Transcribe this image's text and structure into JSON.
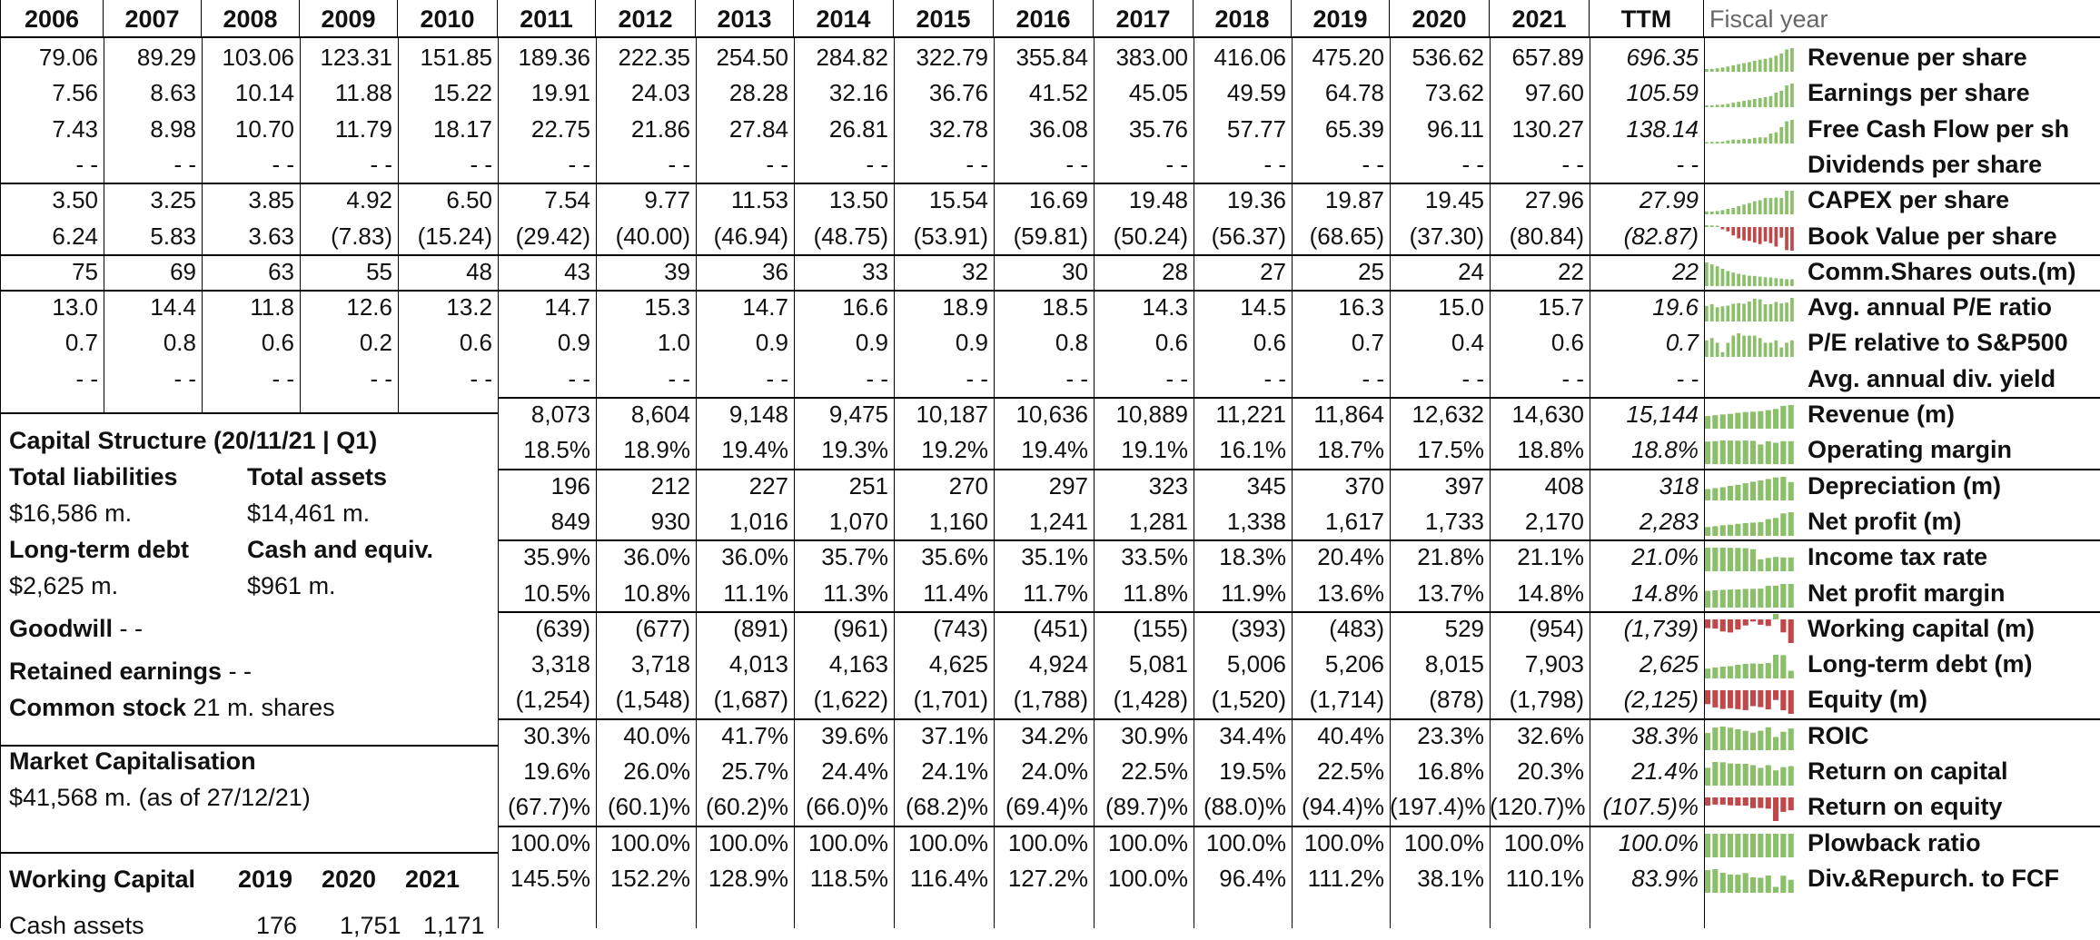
{
  "header": {
    "years": [
      "2006",
      "2007",
      "2008",
      "2009",
      "2010",
      "2011",
      "2012",
      "2013",
      "2014",
      "2015",
      "2016",
      "2017",
      "2018",
      "2019",
      "2020",
      "2021",
      "TTM"
    ],
    "fiscal_year_label": "Fiscal year"
  },
  "rows": [
    {
      "label": "Revenue per share",
      "values": [
        "79.06",
        "89.29",
        "103.06",
        "123.31",
        "151.85",
        "189.36",
        "222.35",
        "254.50",
        "284.82",
        "322.79",
        "355.84",
        "383.00",
        "416.06",
        "475.20",
        "536.62",
        "657.89",
        "696.35"
      ],
      "spark": "up"
    },
    {
      "label": "Earnings per share",
      "values": [
        "7.56",
        "8.63",
        "10.14",
        "11.88",
        "15.22",
        "19.91",
        "24.03",
        "28.28",
        "32.16",
        "36.76",
        "41.52",
        "45.05",
        "49.59",
        "64.78",
        "73.62",
        "97.60",
        "105.59"
      ],
      "spark": "up"
    },
    {
      "label": "Free Cash Flow per sh",
      "values": [
        "7.43",
        "8.98",
        "10.70",
        "11.79",
        "18.17",
        "22.75",
        "21.86",
        "27.84",
        "26.81",
        "32.78",
        "36.08",
        "35.76",
        "57.77",
        "65.39",
        "96.11",
        "130.27",
        "138.14"
      ],
      "spark": "up"
    },
    {
      "label": "Dividends per share",
      "values": [
        "- -",
        "- -",
        "- -",
        "- -",
        "- -",
        "- -",
        "- -",
        "- -",
        "- -",
        "- -",
        "- -",
        "- -",
        "- -",
        "- -",
        "- -",
        "- -",
        "- -"
      ],
      "spark": "none"
    },
    {
      "label": "CAPEX per share",
      "values": [
        "3.50",
        "3.25",
        "3.85",
        "4.92",
        "6.50",
        "7.54",
        "9.77",
        "11.53",
        "13.50",
        "15.54",
        "16.69",
        "19.48",
        "19.36",
        "19.87",
        "19.45",
        "27.96",
        "27.99"
      ],
      "spark": "up"
    },
    {
      "label": "Book Value per share",
      "values": [
        "6.24",
        "5.83",
        "3.63",
        "(7.83)",
        "(15.24)",
        "(29.42)",
        "(40.00)",
        "(46.94)",
        "(48.75)",
        "(53.91)",
        "(59.81)",
        "(50.24)",
        "(56.37)",
        "(68.65)",
        "(37.30)",
        "(80.84)",
        "(82.87)"
      ],
      "spark": "neg"
    },
    {
      "label": "Comm.Shares outs.(m)",
      "values": [
        "75",
        "69",
        "63",
        "55",
        "48",
        "43",
        "39",
        "36",
        "33",
        "32",
        "30",
        "28",
        "27",
        "25",
        "24",
        "22",
        "22"
      ],
      "spark": "down"
    },
    {
      "label": "Avg. annual P/E ratio",
      "values": [
        "13.0",
        "14.4",
        "11.8",
        "12.6",
        "13.2",
        "14.7",
        "15.3",
        "14.7",
        "16.6",
        "18.9",
        "18.5",
        "14.3",
        "14.5",
        "16.3",
        "15.0",
        "15.7",
        "19.6"
      ],
      "spark": "flat"
    },
    {
      "label": "P/E relative to S&P500",
      "values": [
        "0.7",
        "0.8",
        "0.6",
        "0.2",
        "0.6",
        "0.9",
        "1.0",
        "0.9",
        "0.9",
        "0.9",
        "0.8",
        "0.6",
        "0.6",
        "0.7",
        "0.4",
        "0.6",
        "0.7"
      ],
      "spark": "mixed"
    },
    {
      "label": "Avg. annual div. yield",
      "values": [
        "- -",
        "- -",
        "- -",
        "- -",
        "- -",
        "- -",
        "- -",
        "- -",
        "- -",
        "- -",
        "- -",
        "- -",
        "- -",
        "- -",
        "- -",
        "- -",
        "- -"
      ],
      "spark": "none"
    },
    {
      "label": "Revenue (m)",
      "values": [
        "",
        "",
        "",
        "",
        "",
        "8,073",
        "8,604",
        "9,148",
        "9,475",
        "10,187",
        "10,636",
        "10,889",
        "11,221",
        "11,864",
        "12,632",
        "14,630",
        "15,144"
      ],
      "spark": "up"
    },
    {
      "label": "Operating margin",
      "values": [
        "",
        "",
        "",
        "",
        "",
        "18.5%",
        "18.9%",
        "19.4%",
        "19.3%",
        "19.2%",
        "19.4%",
        "19.1%",
        "16.1%",
        "18.7%",
        "17.5%",
        "18.8%",
        "18.8%"
      ],
      "spark": "flat"
    },
    {
      "label": "Depreciation (m)",
      "values": [
        "",
        "",
        "",
        "",
        "",
        "196",
        "212",
        "227",
        "251",
        "270",
        "297",
        "323",
        "345",
        "370",
        "397",
        "408",
        "318"
      ],
      "spark": "up"
    },
    {
      "label": "Net profit (m)",
      "values": [
        "",
        "",
        "",
        "",
        "",
        "849",
        "930",
        "1,016",
        "1,070",
        "1,160",
        "1,241",
        "1,281",
        "1,338",
        "1,617",
        "1,733",
        "2,170",
        "2,283"
      ],
      "spark": "up"
    },
    {
      "label": "Income tax rate",
      "values": [
        "",
        "",
        "",
        "",
        "",
        "35.9%",
        "36.0%",
        "36.0%",
        "35.7%",
        "35.6%",
        "35.1%",
        "33.5%",
        "18.3%",
        "20.4%",
        "21.8%",
        "21.1%",
        "21.0%"
      ],
      "spark": "down"
    },
    {
      "label": "Net profit margin",
      "values": [
        "",
        "",
        "",
        "",
        "",
        "10.5%",
        "10.8%",
        "11.1%",
        "11.3%",
        "11.4%",
        "11.7%",
        "11.8%",
        "11.9%",
        "13.6%",
        "13.7%",
        "14.8%",
        "14.8%"
      ],
      "spark": "up"
    },
    {
      "label": "Working capital (m)",
      "values": [
        "",
        "",
        "",
        "",
        "",
        "(639)",
        "(677)",
        "(891)",
        "(961)",
        "(743)",
        "(451)",
        "(155)",
        "(393)",
        "(483)",
        "529",
        "(954)",
        "(1,739)"
      ],
      "spark": "neg"
    },
    {
      "label": "Long-term debt (m)",
      "values": [
        "",
        "",
        "",
        "",
        "",
        "3,318",
        "3,718",
        "4,013",
        "4,163",
        "4,625",
        "4,924",
        "5,081",
        "5,006",
        "5,206",
        "8,015",
        "7,903",
        "2,625"
      ],
      "spark": "up"
    },
    {
      "label": "Equity (m)",
      "values": [
        "",
        "",
        "",
        "",
        "",
        "(1,254)",
        "(1,548)",
        "(1,687)",
        "(1,622)",
        "(1,701)",
        "(1,788)",
        "(1,428)",
        "(1,520)",
        "(1,714)",
        "(878)",
        "(1,798)",
        "(2,125)"
      ],
      "spark": "neg"
    },
    {
      "label": "ROIC",
      "values": [
        "",
        "",
        "",
        "",
        "",
        "30.3%",
        "40.0%",
        "41.7%",
        "39.6%",
        "37.1%",
        "34.2%",
        "30.9%",
        "34.4%",
        "40.4%",
        "23.3%",
        "32.6%",
        "38.3%"
      ],
      "spark": "flat"
    },
    {
      "label": "Return on capital",
      "values": [
        "",
        "",
        "",
        "",
        "",
        "19.6%",
        "26.0%",
        "25.7%",
        "24.4%",
        "24.1%",
        "24.0%",
        "22.5%",
        "19.5%",
        "22.5%",
        "16.8%",
        "20.3%",
        "21.4%"
      ],
      "spark": "flat"
    },
    {
      "label": "Return on equity",
      "values": [
        "",
        "",
        "",
        "",
        "",
        "(67.7)%",
        "(60.1)%",
        "(60.2)%",
        "(66.0)%",
        "(68.2)%",
        "(69.4)%",
        "(89.7)%",
        "(88.0)%",
        "(94.4)%",
        "(197.4)%",
        "(120.7)%",
        "(107.5)%"
      ],
      "spark": "negsmall"
    },
    {
      "label": "Plowback ratio",
      "values": [
        "",
        "",
        "",
        "",
        "",
        "100.0%",
        "100.0%",
        "100.0%",
        "100.0%",
        "100.0%",
        "100.0%",
        "100.0%",
        "100.0%",
        "100.0%",
        "100.0%",
        "100.0%",
        "100.0%"
      ],
      "spark": "flat"
    },
    {
      "label": "Div.&Repurch. to FCF",
      "values": [
        "",
        "",
        "",
        "",
        "",
        "145.5%",
        "152.2%",
        "128.9%",
        "118.5%",
        "116.4%",
        "127.2%",
        "100.0%",
        "96.4%",
        "111.2%",
        "38.1%",
        "110.1%",
        "83.9%"
      ],
      "spark": "flat"
    }
  ],
  "left_panel": {
    "cap_title": "Capital Structure (20/11/21 | Q1)",
    "total_liabilities_label": "Total liabilities",
    "total_liabilities_value": "$16,586 m.",
    "total_assets_label": "Total assets",
    "total_assets_value": "$14,461 m.",
    "lt_debt_label": "Long-term debt",
    "lt_debt_value": "$2,625 m.",
    "cash_label": "Cash and equiv.",
    "cash_value": "$961 m.",
    "goodwill_label": "Goodwill",
    "goodwill_value": "- -",
    "retained_label": "Retained earnings",
    "retained_value": "- -",
    "common_label": "Common stock",
    "common_value": "21 m. shares",
    "mcap_label": "Market Capitalisation",
    "mcap_value": "$41,568 m. (as of 27/12/21)",
    "wc_title": "Working Capital",
    "wc_years": [
      "2019",
      "2020",
      "2021"
    ],
    "wc_row_label": "Cash assets",
    "wc_row_values": [
      "176",
      "1,751",
      "1,171"
    ]
  },
  "colors": {
    "spark_pos": "#8bbf6a",
    "spark_neg": "#c0484a",
    "grid": "#000000"
  }
}
